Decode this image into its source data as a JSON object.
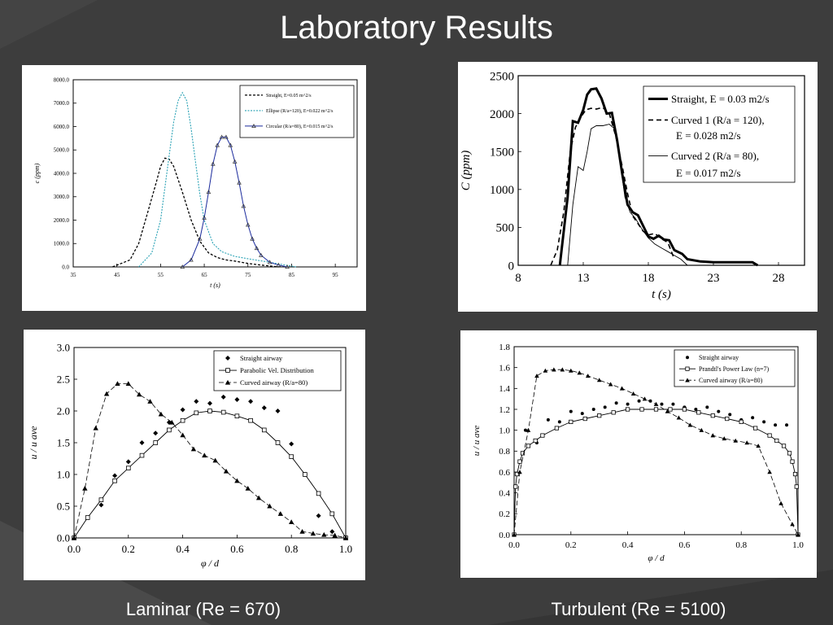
{
  "slide": {
    "title": "Laboratory Results",
    "caption_left": "Laminar (Re = 670)",
    "caption_right": "Turbulent (Re = 5100)",
    "background": "#3d3d3d"
  },
  "chart_data": [
    {
      "id": "chart1",
      "type": "line",
      "xlabel": "t (s)",
      "ylabel": "c (ppm)",
      "xlim": [
        35,
        100
      ],
      "ylim": [
        0,
        8000
      ],
      "xticks": [
        "35",
        "45",
        "55",
        "65",
        "75",
        "85",
        "95"
      ],
      "yticks": [
        "0.0",
        "1000.0",
        "2000.0",
        "3000.0",
        "4000.0",
        "5000.0",
        "6000.0",
        "7000.0",
        "8000.0"
      ],
      "legend": [
        "Straight, E=0.05 m^2/s",
        "Ellipse (R/a=120), E=0.022 m^2/s",
        "Circular (R/a=80), E=0.015 m^2/s"
      ],
      "legend_position": "top-right",
      "series": [
        {
          "x": [
            44,
            48,
            50,
            52,
            54,
            55,
            56,
            57,
            58,
            60,
            62,
            64,
            66,
            68,
            70,
            72,
            75,
            78,
            82
          ],
          "y": [
            0,
            300,
            1000,
            2300,
            3600,
            4300,
            4650,
            4600,
            4300,
            3200,
            2000,
            1100,
            600,
            400,
            300,
            250,
            150,
            80,
            0
          ]
        },
        {
          "x": [
            50,
            53,
            55,
            57,
            58,
            59,
            60,
            61,
            62,
            63,
            64,
            65,
            67,
            69,
            72,
            75,
            80,
            86
          ],
          "y": [
            0,
            600,
            2000,
            4800,
            6200,
            7100,
            7450,
            7100,
            5900,
            4500,
            3100,
            2000,
            1000,
            650,
            450,
            350,
            200,
            0
          ]
        },
        {
          "x": [
            60,
            62,
            64,
            65,
            66,
            67,
            68,
            69,
            70,
            71,
            72,
            73,
            74,
            75,
            76,
            77,
            78,
            80,
            82,
            84
          ],
          "y": [
            0,
            300,
            1200,
            2100,
            3200,
            4400,
            5200,
            5550,
            5550,
            5200,
            4500,
            3600,
            2600,
            1800,
            1200,
            800,
            500,
            200,
            80,
            0
          ]
        }
      ]
    },
    {
      "id": "chart2",
      "type": "line",
      "xlabel": "t (s)",
      "ylabel": "C (ppm)",
      "xlim": [
        8,
        30
      ],
      "ylim": [
        0,
        2500
      ],
      "xticks": [
        "8",
        "13",
        "18",
        "23",
        "28"
      ],
      "yticks": [
        "0",
        "500",
        "1000",
        "1500",
        "2000",
        "2500"
      ],
      "legend": [
        "Straight, E = 0.03 m2/s",
        "Curved 1 (R/a = 120),",
        "E = 0.028 m2/s",
        "Curved 2 (R/a = 80),",
        "E = 0.017 m2/s"
      ],
      "legend_position": "top-right",
      "series": [
        {
          "x": [
            11.2,
            11.8,
            12.2,
            12.6,
            13.0,
            13.3,
            13.6,
            14.0,
            14.4,
            14.8,
            15.2,
            15.6,
            16.0,
            16.4,
            16.8,
            17.2,
            17.6,
            18.0,
            18.4,
            18.8,
            19.2,
            19.6,
            20.0,
            20.6,
            21.0,
            22.0,
            23.0,
            24.0,
            25.0,
            26.0,
            26.4
          ],
          "y": [
            0,
            900,
            1900,
            1880,
            2050,
            2250,
            2320,
            2330,
            2200,
            2000,
            2010,
            1650,
            1200,
            800,
            700,
            660,
            520,
            380,
            350,
            390,
            340,
            330,
            200,
            150,
            80,
            50,
            40,
            40,
            40,
            40,
            0
          ]
        },
        {
          "x": [
            10.5,
            11.0,
            11.5,
            12.0,
            12.4,
            12.8,
            13.2,
            13.6,
            14.0,
            14.5,
            15.0,
            15.5,
            16.0,
            16.4,
            16.8,
            17.2,
            17.6,
            18.0,
            18.5,
            19.0,
            19.5,
            20.0
          ],
          "y": [
            0,
            200,
            700,
            1500,
            1820,
            1950,
            2050,
            2070,
            2060,
            2080,
            2000,
            1700,
            1300,
            950,
            650,
            550,
            450,
            400,
            420,
            350,
            300,
            80
          ]
        },
        {
          "x": [
            11.8,
            12.2,
            12.6,
            13.0,
            13.3,
            13.6,
            14.0,
            14.5,
            15.0,
            15.4,
            15.8,
            16.2,
            16.6,
            17.0,
            17.5,
            18.0,
            18.5,
            19.0,
            19.5,
            20.0,
            20.5,
            21.0
          ],
          "y": [
            0,
            800,
            1300,
            1250,
            1500,
            1800,
            1840,
            1840,
            1860,
            1800,
            1400,
            900,
            700,
            620,
            480,
            360,
            280,
            230,
            180,
            130,
            80,
            0
          ]
        }
      ]
    },
    {
      "id": "chart3",
      "type": "line",
      "xlabel": "φ / d",
      "ylabel": "u / u ave",
      "xlim": [
        0,
        1
      ],
      "ylim": [
        0,
        3
      ],
      "xticks": [
        "0.0",
        "0.2",
        "0.4",
        "0.6",
        "0.8",
        "1.0"
      ],
      "yticks": [
        "0.0",
        "0.5",
        "1.0",
        "1.5",
        "2.0",
        "2.5",
        "3.0"
      ],
      "legend": [
        "Straight airway",
        "Parabolic Vel. Distribution",
        "Curved airway (R/a=80)"
      ],
      "legend_position": "top-right",
      "series": [
        {
          "x": [
            0.1,
            0.15,
            0.2,
            0.25,
            0.3,
            0.35,
            0.4,
            0.45,
            0.5,
            0.55,
            0.6,
            0.65,
            0.7,
            0.75,
            0.8,
            0.85,
            0.9,
            0.95
          ],
          "y": [
            0.52,
            0.98,
            1.2,
            1.5,
            1.65,
            1.82,
            2.02,
            2.15,
            2.12,
            2.22,
            2.18,
            2.15,
            2.05,
            2.0,
            1.48,
            1.0,
            0.35,
            0.1
          ]
        },
        {
          "x": [
            0,
            0.05,
            0.1,
            0.15,
            0.2,
            0.25,
            0.3,
            0.35,
            0.4,
            0.45,
            0.5,
            0.55,
            0.6,
            0.65,
            0.7,
            0.75,
            0.8,
            0.85,
            0.9,
            0.95,
            1.0
          ],
          "y": [
            0,
            0.32,
            0.6,
            0.9,
            1.1,
            1.3,
            1.5,
            1.7,
            1.85,
            1.97,
            2.0,
            1.98,
            1.92,
            1.85,
            1.7,
            1.5,
            1.28,
            1.0,
            0.7,
            0.38,
            0
          ]
        },
        {
          "x": [
            0,
            0.04,
            0.08,
            0.12,
            0.16,
            0.2,
            0.24,
            0.28,
            0.32,
            0.36,
            0.4,
            0.44,
            0.48,
            0.52,
            0.56,
            0.6,
            0.64,
            0.68,
            0.72,
            0.76,
            0.8,
            0.84,
            0.88,
            0.92,
            0.96,
            1.0
          ],
          "y": [
            0,
            0.78,
            1.73,
            2.27,
            2.43,
            2.43,
            2.26,
            2.15,
            1.95,
            1.82,
            1.62,
            1.4,
            1.3,
            1.22,
            1.05,
            0.9,
            0.78,
            0.63,
            0.5,
            0.38,
            0.25,
            0.1,
            0.07,
            0.05,
            0.04,
            0
          ]
        }
      ]
    },
    {
      "id": "chart4",
      "type": "line",
      "xlabel": "φ / d",
      "ylabel": "u / u ave",
      "xlim": [
        0,
        1
      ],
      "ylim": [
        0,
        1.8
      ],
      "xticks": [
        "0.0",
        "0.2",
        "0.4",
        "0.6",
        "0.8",
        "1.0"
      ],
      "yticks": [
        "0.0",
        "0.2",
        "0.4",
        "0.6",
        "0.8",
        "1.0",
        "1.2",
        "1.4",
        "1.6",
        "1.8"
      ],
      "legend": [
        "Straight airway",
        "Prandtl's Power Law (n=7)",
        "Curved airway (R/a=80)"
      ],
      "legend_position": "top-right",
      "series": [
        {
          "x": [
            0.0,
            0.04,
            0.08,
            0.12,
            0.16,
            0.2,
            0.24,
            0.28,
            0.32,
            0.36,
            0.4,
            0.44,
            0.48,
            0.52,
            0.56,
            0.6,
            0.64,
            0.68,
            0.72,
            0.76,
            0.8,
            0.84,
            0.88,
            0.92,
            0.96,
            1.0
          ],
          "y": [
            0.0,
            1.0,
            0.88,
            1.1,
            1.08,
            1.18,
            1.16,
            1.2,
            1.22,
            1.26,
            1.25,
            1.28,
            1.28,
            1.25,
            1.25,
            1.22,
            1.2,
            1.22,
            1.18,
            1.15,
            1.1,
            1.12,
            1.08,
            1.05,
            1.05,
            0.0
          ]
        },
        {
          "x": [
            0,
            0.005,
            0.01,
            0.02,
            0.03,
            0.05,
            0.075,
            0.1,
            0.15,
            0.2,
            0.25,
            0.3,
            0.35,
            0.4,
            0.45,
            0.5,
            0.55,
            0.6,
            0.65,
            0.7,
            0.75,
            0.8,
            0.85,
            0.9,
            0.925,
            0.95,
            0.97,
            0.98,
            0.99,
            0.995,
            1.0
          ],
          "y": [
            0,
            0.46,
            0.58,
            0.7,
            0.78,
            0.85,
            0.9,
            0.95,
            1.02,
            1.08,
            1.11,
            1.14,
            1.17,
            1.2,
            1.2,
            1.2,
            1.2,
            1.2,
            1.17,
            1.14,
            1.11,
            1.08,
            1.02,
            0.95,
            0.9,
            0.85,
            0.78,
            0.7,
            0.58,
            0.46,
            0
          ]
        },
        {
          "x": [
            0,
            0.02,
            0.05,
            0.08,
            0.11,
            0.14,
            0.17,
            0.2,
            0.23,
            0.26,
            0.3,
            0.34,
            0.38,
            0.42,
            0.46,
            0.5,
            0.54,
            0.58,
            0.62,
            0.66,
            0.7,
            0.74,
            0.78,
            0.82,
            0.86,
            0.9,
            0.94,
            0.98,
            1.0
          ],
          "y": [
            0,
            0.6,
            1.0,
            1.52,
            1.57,
            1.58,
            1.58,
            1.57,
            1.55,
            1.52,
            1.48,
            1.44,
            1.4,
            1.35,
            1.3,
            1.25,
            1.18,
            1.12,
            1.05,
            1.0,
            0.95,
            0.92,
            0.9,
            0.88,
            0.85,
            0.6,
            0.3,
            0.1,
            0
          ]
        }
      ]
    }
  ]
}
